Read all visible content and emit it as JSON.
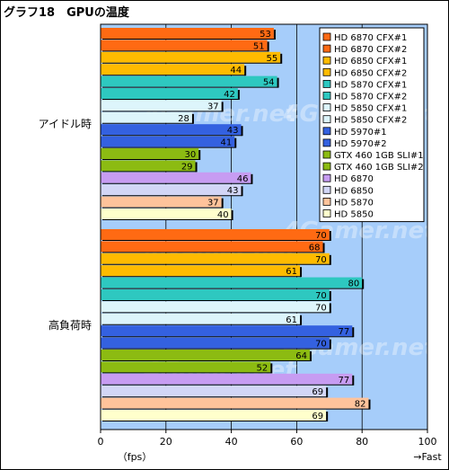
{
  "title": "グラフ18　GPUの温度",
  "chart_data": {
    "type": "bar",
    "orientation": "horizontal",
    "title": "グラフ18　GPUの温度",
    "xlabel": "（fps）",
    "x_direction_label": "→Fast",
    "xlim": [
      0,
      100
    ],
    "xticks": [
      0,
      20,
      40,
      60,
      80,
      100
    ],
    "grid": true,
    "legend_position": "top-right",
    "watermark": "4Gamer.net",
    "categories": [
      "アイドル時",
      "高負荷時"
    ],
    "series": [
      {
        "name": "HD 6870 CFX#1",
        "color": "#ff6a13",
        "values": [
          53,
          70
        ]
      },
      {
        "name": "HD 6870 CFX#2",
        "color": "#ff6a13",
        "values": [
          51,
          68
        ]
      },
      {
        "name": "HD 6850 CFX#1",
        "color": "#ffbb00",
        "values": [
          55,
          70
        ]
      },
      {
        "name": "HD 6850 CFX#2",
        "color": "#ffbb00",
        "values": [
          44,
          61
        ]
      },
      {
        "name": "HD 5870 CFX#1",
        "color": "#2ec8c0",
        "values": [
          54,
          80
        ]
      },
      {
        "name": "HD 5870 CFX#2",
        "color": "#2ec8c0",
        "values": [
          42,
          70
        ]
      },
      {
        "name": "HD 5850 CFX#1",
        "color": "#ddf5fb",
        "values": [
          37,
          70
        ]
      },
      {
        "name": "HD 5850 CFX#2",
        "color": "#ddf5fb",
        "values": [
          28,
          61
        ]
      },
      {
        "name": "HD 5970#1",
        "color": "#3461e0",
        "values": [
          43,
          77
        ]
      },
      {
        "name": "HD 5970#2",
        "color": "#3461e0",
        "values": [
          41,
          70
        ]
      },
      {
        "name": "GTX 460 1GB SLI#1",
        "color": "#8cbb12",
        "values": [
          30,
          64
        ]
      },
      {
        "name": "GTX 460 1GB SLI#2",
        "color": "#8cbb12",
        "values": [
          29,
          52
        ]
      },
      {
        "name": "HD 6870",
        "color": "#c79cf2",
        "values": [
          46,
          77
        ]
      },
      {
        "name": "HD 6850",
        "color": "#d2d6f6",
        "values": [
          43,
          69
        ]
      },
      {
        "name": "HD 5870",
        "color": "#ffc39b",
        "values": [
          37,
          82
        ]
      },
      {
        "name": "HD 5850",
        "color": "#ffffcc",
        "values": [
          40,
          69
        ]
      }
    ]
  }
}
